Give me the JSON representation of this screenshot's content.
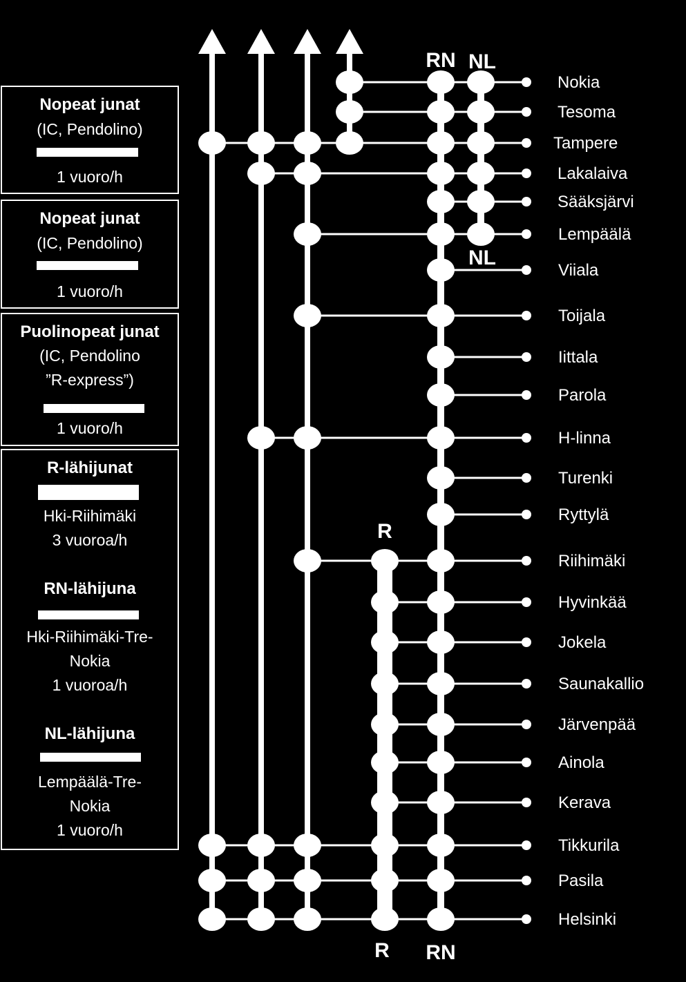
{
  "legend": [
    {
      "title": "Nopeat junat",
      "lines": [
        "(IC, Pendolino)",
        "1 vuoro/h"
      ]
    },
    {
      "title": "Nopeat junat",
      "lines": [
        "(IC, Pendolino)",
        "1 vuoro/h"
      ]
    },
    {
      "title": "Puolinopeat junat",
      "lines": [
        "(IC, Pendolino",
        "”R-express”)",
        "1 vuoro/h"
      ]
    },
    {
      "sections": [
        {
          "title": "R-lähijunat",
          "lines": [
            "Hki-Riihimäki",
            "3 vuoroa/h"
          ]
        },
        {
          "title": "RN-lähijuna",
          "lines": [
            "Hki-Riihimäki-Tre-",
            "Nokia",
            "1 vuoroa/h"
          ]
        },
        {
          "title": "NL-lähijuna",
          "lines": [
            "Lempäälä-Tre-",
            "Nokia",
            "1 vuoro/h"
          ]
        }
      ]
    }
  ],
  "line_labels": {
    "rn_top": "RN",
    "nl_top": "NL",
    "nl_mid": "NL",
    "r_top": "R",
    "r_bottom": "R",
    "rn_bottom": "RN"
  },
  "stations": [
    "Nokia",
    "Tesoma",
    "Tampere",
    "Lakalaiva",
    "Sääksjärvi",
    "Lempäälä",
    "Viiala",
    "Toijala",
    "Iittala",
    "Parola",
    "H-linna",
    "Turenki",
    "Ryttylä",
    "Riihimäki",
    "Hyvinkää",
    "Jokela",
    "Saunakallio",
    "Järvenpää",
    "Ainola",
    "Kerava",
    "Tikkurila",
    "Pasila",
    "Helsinki"
  ],
  "services": [
    {
      "line": "Nopeat junat 1",
      "stops": [
        "Helsinki",
        "Pasila",
        "Tikkurila",
        "Tampere"
      ]
    },
    {
      "line": "Nopeat junat 2",
      "stops": [
        "Helsinki",
        "Pasila",
        "Tikkurila",
        "H-linna",
        "Lakalaiva",
        "Tampere"
      ]
    },
    {
      "line": "Puolinopeat junat",
      "stops": [
        "Helsinki",
        "Pasila",
        "Tikkurila",
        "Riihimäki",
        "H-linna",
        "Toijala",
        "Lempäälä",
        "Lakalaiva",
        "Tampere"
      ]
    },
    {
      "line": "Tampere-Nokia",
      "stops": [
        "Tampere",
        "Tesoma",
        "Nokia"
      ]
    },
    {
      "line": "R",
      "stops": [
        "Helsinki",
        "Pasila",
        "Tikkurila",
        "Kerava",
        "Ainola",
        "Järvenpää",
        "Saunakallio",
        "Jokela",
        "Hyvinkää",
        "Riihimäki"
      ]
    },
    {
      "line": "RN",
      "stops": [
        "Helsinki",
        "Pasila",
        "Tikkurila",
        "Kerava",
        "Ainola",
        "Järvenpää",
        "Saunakallio",
        "Jokela",
        "Hyvinkää",
        "Riihimäki",
        "Ryttylä",
        "Turenki",
        "H-linna",
        "Parola",
        "Iittala",
        "Toijala",
        "Viiala",
        "Lempäälä",
        "Sääksjärvi",
        "Lakalaiva",
        "Tampere",
        "Tesoma",
        "Nokia"
      ]
    },
    {
      "line": "NL",
      "stops": [
        "Lempäälä",
        "Sääksjärvi",
        "Lakalaiva",
        "Tampere",
        "Tesoma",
        "Nokia"
      ]
    }
  ]
}
